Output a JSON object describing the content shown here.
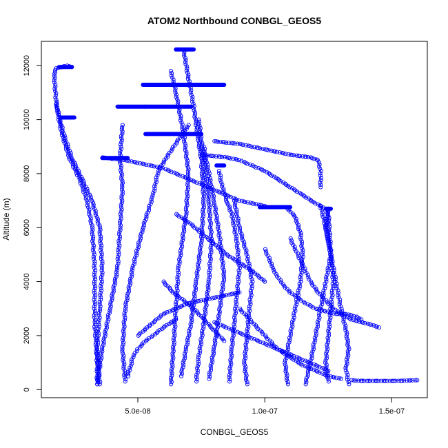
{
  "chart_data": {
    "type": "scatter",
    "title": "ATOM2 Northbound CONBGL_GEOS5",
    "xlabel": "CONBGL_GEOS5",
    "ylabel": "Altitude (m)",
    "xlim": [
      1.2e-08,
      1.64e-07
    ],
    "ylim": [
      -300,
      12900
    ],
    "x_ticks": [
      {
        "value": 5e-08,
        "label": "5.0e-08"
      },
      {
        "value": 1e-07,
        "label": "1.0e-07"
      },
      {
        "value": 1.5e-07,
        "label": "1.5e-07"
      }
    ],
    "y_ticks": [
      {
        "value": 0,
        "label": "0"
      },
      {
        "value": 2000,
        "label": "2000"
      },
      {
        "value": 4000,
        "label": "4000"
      },
      {
        "value": 6000,
        "label": "6000"
      },
      {
        "value": 8000,
        "label": "8000"
      },
      {
        "value": 10000,
        "label": "10000"
      },
      {
        "value": 12000,
        "label": "12000"
      }
    ],
    "point_style": "open-circle",
    "color": "#0000ff",
    "grid": false,
    "series": [
      {
        "x": [
          3.4e-08,
          3.4e-08,
          3.3e-08,
          3.3e-08,
          3.2e-08,
          3e-08,
          2.7e-08,
          2.3e-08,
          2e-08,
          1.8e-08,
          1.7e-08,
          1.8e-08,
          2.2e-08,
          2.4e-08
        ],
        "y": [
          200,
          1000,
          2500,
          4500,
          6000,
          7000,
          7800,
          8600,
          9500,
          10500,
          11700,
          11900,
          12000,
          11950
        ]
      },
      {
        "x": [
          3.5e-08,
          3.4e-08,
          3.5e-08,
          3.6e-08,
          3.5e-08,
          3.2e-08,
          2.8e-08,
          2.4e-08,
          2.1e-08,
          1.9e-08,
          1.8e-08
        ],
        "y": [
          200,
          1500,
          3000,
          4500,
          6000,
          7000,
          7800,
          8600,
          9400,
          10100,
          10600
        ]
      },
      {
        "x": [
          3.4e-08,
          3.6e-08,
          3.9e-08,
          4.2e-08,
          4.3e-08,
          4.4e-08,
          4.3e-08,
          4.4e-08
        ],
        "y": [
          200,
          1500,
          3000,
          4500,
          6000,
          7500,
          8600,
          9800
        ]
      },
      {
        "x": [
          4.5e-08,
          4.4e-08,
          4.5e-08,
          4.8e-08,
          5.2e-08,
          5.6e-08,
          5.8e-08,
          6.2e-08,
          6.7e-08,
          7e-08
        ],
        "y": [
          300,
          1500,
          3000,
          4500,
          6000,
          7200,
          8100,
          8700,
          9400,
          9800
        ]
      },
      {
        "x": [
          6.3e-08,
          6.4e-08,
          6.5e-08,
          6.6e-08,
          6.9e-08,
          7e-08,
          6.8e-08,
          6.5e-08,
          6.3e-08
        ],
        "y": [
          200,
          1500,
          3000,
          4500,
          6500,
          8000,
          9500,
          11000,
          11800
        ]
      },
      {
        "x": [
          6.7e-08,
          6.9e-08,
          7.1e-08,
          7.3e-08,
          7.5e-08,
          7.6e-08,
          7.5e-08,
          7.3e-08,
          7.2e-08,
          7e-08,
          6.8e-08
        ],
        "y": [
          500,
          1500,
          2500,
          4000,
          5500,
          7000,
          8500,
          9800,
          10500,
          11500,
          12600
        ]
      },
      {
        "x": [
          7.3e-08,
          7.4e-08,
          7.6e-08,
          7.8e-08,
          7.9e-08,
          7.8e-08,
          7.6e-08,
          7.4e-08
        ],
        "y": [
          300,
          1200,
          2500,
          4000,
          5500,
          7000,
          8500,
          10000
        ]
      },
      {
        "x": [
          7.8e-08,
          8e-08,
          8.2e-08,
          8.4e-08,
          8.2e-08,
          8e-08,
          7.8e-08,
          7.6e-08
        ],
        "y": [
          400,
          1500,
          2800,
          4200,
          5800,
          7000,
          8000,
          9000
        ]
      },
      {
        "x": [
          8.6e-08,
          8.7e-08,
          8.8e-08,
          8.9e-08,
          9e-08,
          8.9e-08,
          8.7e-08,
          8.5e-08,
          8.3e-08,
          8.2e-08
        ],
        "y": [
          300,
          1500,
          2500,
          3500,
          4500,
          5500,
          6500,
          7000,
          7600,
          8100
        ]
      },
      {
        "x": [
          9.3e-08,
          9.2e-08,
          9.3e-08,
          9.4e-08,
          9.5e-08,
          9.3e-08,
          9e-08,
          8.8e-08
        ],
        "y": [
          200,
          1000,
          2000,
          3000,
          4000,
          5000,
          6000,
          7000
        ]
      },
      {
        "x": [
          1.09e-07,
          1.08e-07,
          1.1e-07,
          1.12e-07,
          1.14e-07,
          1.15e-07,
          1.14e-07,
          1.12e-07,
          1.09e-07
        ],
        "y": [
          200,
          1000,
          2000,
          3000,
          4000,
          5000,
          5800,
          6400,
          6700
        ]
      },
      {
        "x": [
          1.16e-07,
          1.18e-07,
          1.2e-07,
          1.22e-07,
          1.24e-07,
          1.26e-07,
          1.25e-07
        ],
        "y": [
          200,
          1000,
          2000,
          3000,
          4000,
          5000,
          6600
        ]
      },
      {
        "x": [
          1.25e-07,
          1.24e-07,
          1.25e-07,
          1.26e-07,
          1.27e-07,
          1.26e-07,
          1.24e-07,
          1.22e-07
        ],
        "y": [
          300,
          1000,
          2000,
          3000,
          4000,
          5000,
          6000,
          6800
        ]
      },
      {
        "x": [
          1.33e-07,
          1.32e-07,
          1.33e-07,
          1.32e-07,
          1.3e-07,
          1.28e-07,
          1.26e-07,
          1.24e-07,
          1.25e-07
        ],
        "y": [
          200,
          800,
          1500,
          2200,
          3000,
          4000,
          5000,
          6000,
          6700
        ]
      },
      {
        "x": [
          1e-07,
          1.02e-07,
          1.03e-07,
          1.05e-07,
          1.07e-07,
          1.1e-07,
          1.13e-07,
          1.16e-07,
          1.2e-07,
          1.24e-07,
          1.28e-07,
          1.32e-07,
          1.36e-07,
          1.38e-07
        ],
        "y": [
          5200,
          4800,
          4500,
          4200,
          3900,
          3600,
          3400,
          3200,
          3000,
          2900,
          2800,
          2800,
          2700,
          2600
        ]
      },
      {
        "x": [
          1.1e-07,
          1.12e-07,
          1.14e-07,
          1.16e-07,
          1.18e-07,
          1.21e-07,
          1.24e-07,
          1.27e-07,
          1.3e-07,
          1.34e-07,
          1.38e-07,
          1.42e-07,
          1.45e-07
        ],
        "y": [
          5600,
          5200,
          4800,
          4400,
          4000,
          3600,
          3300,
          3000,
          2800,
          2600,
          2500,
          2400,
          2300
        ]
      },
      {
        "x": [
          7.5e-08,
          8e-08,
          8.5e-08,
          9e-08,
          9.5e-08,
          1e-07,
          1.05e-07,
          1.1e-07,
          1.15e-07,
          1.2e-07,
          1.24e-07,
          1.25e-07
        ],
        "y": [
          8700,
          8650,
          8600,
          8500,
          8300,
          8100,
          7800,
          7500,
          7200,
          6900,
          6700,
          6650
        ]
      },
      {
        "x": [
          8e-08,
          8.5e-08,
          9e-08,
          9.5e-08,
          1e-07,
          1.05e-07,
          1.1e-07,
          1.14e-07,
          1.18e-07,
          1.21e-07,
          1.22e-07,
          1.22e-07
        ],
        "y": [
          9200,
          9150,
          9100,
          9000,
          8900,
          8800,
          8700,
          8650,
          8600,
          8500,
          8100,
          7500
        ]
      },
      {
        "x": [
          3.6e-08,
          4e-08,
          4.5e-08,
          5e-08,
          5.5e-08,
          6e-08,
          6.5e-08,
          7e-08,
          7.5e-08,
          8e-08,
          8.5e-08,
          9e-08,
          9.5e-08,
          1e-07
        ],
        "y": [
          8600,
          8550,
          8500,
          8400,
          8300,
          8200,
          8000,
          7800,
          7600,
          7400,
          7200,
          7000,
          6900,
          6800
        ]
      },
      {
        "x": [
          1.34e-07,
          1.36e-07,
          1.4e-07,
          1.45e-07,
          1.5e-07,
          1.55e-07,
          1.6e-07
        ],
        "y": [
          350,
          330,
          320,
          320,
          320,
          330,
          350
        ]
      },
      {
        "x": [
          6e-08,
          6.4e-08,
          6.8e-08,
          7.2e-08,
          7.6e-08,
          8e-08,
          8.4e-08
        ],
        "y": [
          4000,
          3600,
          3300,
          3000,
          2600,
          2200,
          1800
        ]
      },
      {
        "x": [
          8e-08,
          8.5e-08,
          9e-08,
          9.5e-08,
          1e-07,
          1.05e-07,
          1.1e-07,
          1.15e-07,
          1.2e-07,
          1.25e-07
        ],
        "y": [
          2500,
          2300,
          2100,
          1900,
          1700,
          1500,
          1300,
          1100,
          900,
          700
        ]
      },
      {
        "x": [
          9e-08,
          9.5e-08,
          1e-07,
          1.05e-07,
          1.1e-07,
          1.15e-07,
          1.2e-07,
          1.25e-07,
          1.3e-07
        ],
        "y": [
          3000,
          2500,
          2000,
          1500,
          1200,
          900,
          700,
          500,
          400
        ]
      },
      {
        "x": [
          4.6e-08,
          4.7e-08,
          4.8e-08,
          5e-08,
          5.3e-08,
          5.6e-08,
          6e-08,
          6.5e-08
        ],
        "y": [
          500,
          800,
          1200,
          1500,
          1800,
          2000,
          2300,
          2600
        ]
      },
      {
        "x": [
          5e-08,
          5.5e-08,
          6e-08,
          6.5e-08,
          7e-08,
          7.5e-08,
          8e-08,
          8.5e-08,
          9e-08
        ],
        "y": [
          2000,
          2400,
          2800,
          3000,
          3200,
          3300,
          3400,
          3500,
          3600
        ]
      },
      {
        "x": [
          6.5e-08,
          7e-08,
          7.5e-08,
          8e-08,
          8.5e-08,
          9e-08,
          9.5e-08,
          1e-07
        ],
        "y": [
          6500,
          6200,
          5800,
          5400,
          5000,
          4700,
          4400,
          4000
        ]
      }
    ],
    "horizontal_segments": [
      {
        "x": [
          1.9e-08,
          2.4e-08
        ],
        "y": 11950
      },
      {
        "x": [
          2e-08,
          2.5e-08
        ],
        "y": 10080
      },
      {
        "x": [
          3.6e-08,
          4.6e-08
        ],
        "y": 8580
      },
      {
        "x": [
          4.2e-08,
          5.3e-08
        ],
        "y": 10480
      },
      {
        "x": [
          5.2e-08,
          8.4e-08
        ],
        "y": 11290
      },
      {
        "x": [
          5.3e-08,
          7.1e-08
        ],
        "y": 10480
      },
      {
        "x": [
          5.3e-08,
          7.5e-08
        ],
        "y": 9470
      },
      {
        "x": [
          6.5e-08,
          7.2e-08
        ],
        "y": 12600
      },
      {
        "x": [
          9.8e-08,
          1.1e-07
        ],
        "y": 6760
      },
      {
        "x": [
          1.24e-07,
          1.26e-07
        ],
        "y": 6700
      },
      {
        "x": [
          8.1e-08,
          8.4e-08
        ],
        "y": 8300
      }
    ]
  }
}
